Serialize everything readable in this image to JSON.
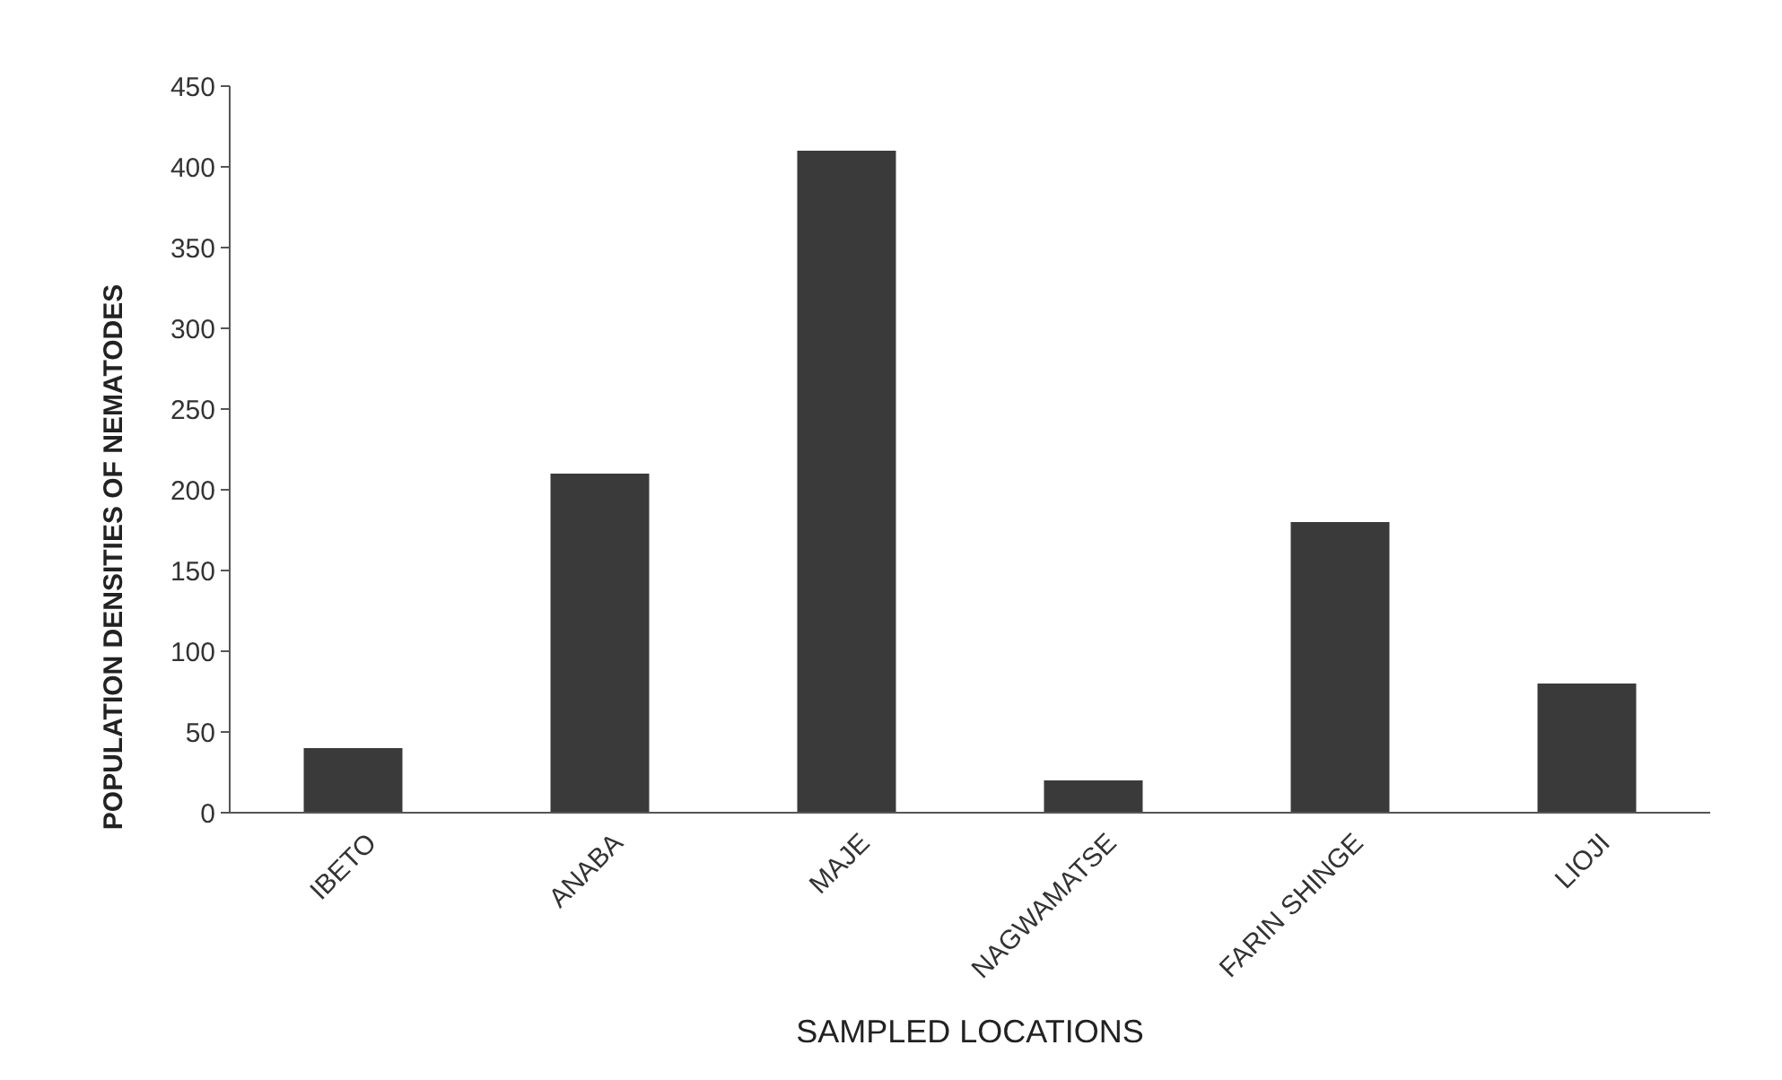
{
  "chart_data": {
    "type": "bar",
    "xlabel": "SAMPLED LOCATIONS",
    "ylabel": "POPULATION DENSITIES OF NEMATODES",
    "categories": [
      "IBETO",
      "ANABA",
      "MAJE",
      "NAGWAMATSE",
      "FARIN SHINGE",
      "LIOJI"
    ],
    "values": [
      40,
      210,
      410,
      20,
      180,
      80
    ],
    "color": "#3a3a3a",
    "ylim": [
      0,
      450
    ],
    "yticks": [
      0,
      50,
      100,
      150,
      200,
      250,
      300,
      350,
      400,
      450
    ],
    "grid": false
  }
}
